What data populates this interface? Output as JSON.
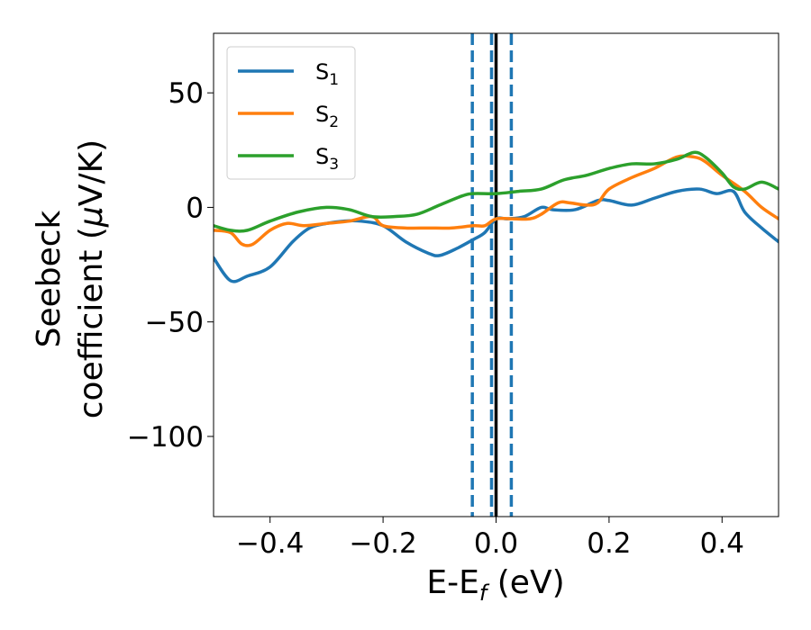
{
  "chart_data": {
    "type": "line",
    "title": "",
    "xlabel": {
      "main": "E-E",
      "sub": "f",
      "unit": " (eV)"
    },
    "ylabel": {
      "line1": "Seebeck",
      "line2_start": "coefficient  (",
      "mu": "μ",
      "line2_end": "V/K)"
    },
    "xlim": [
      -0.5,
      0.5
    ],
    "ylim": [
      -135,
      76
    ],
    "xticks": [
      -0.4,
      -0.2,
      0.0,
      0.2,
      0.4
    ],
    "xtick_labels": [
      "−0.4",
      "−0.2",
      "0.0",
      "0.2",
      "0.4"
    ],
    "yticks": [
      50,
      0,
      -50,
      -100
    ],
    "ytick_labels": [
      "50",
      "0",
      "−50",
      "−100"
    ],
    "grid": false,
    "legend": {
      "placement": "top-left"
    },
    "series": [
      {
        "name": "S1",
        "label_main": "S",
        "label_sub": "1",
        "color": "#1f77b4",
        "x": [
          -0.5,
          -0.47,
          -0.44,
          -0.4,
          -0.36,
          -0.33,
          -0.3,
          -0.27,
          -0.24,
          -0.2,
          -0.16,
          -0.12,
          -0.1,
          -0.07,
          -0.04,
          -0.02,
          0.0,
          0.02,
          0.05,
          0.08,
          0.1,
          0.14,
          0.18,
          0.2,
          0.24,
          0.28,
          0.32,
          0.36,
          0.39,
          0.42,
          0.44,
          0.47,
          0.5
        ],
        "y": [
          -22,
          -32,
          -30,
          -26,
          -15,
          -9,
          -7,
          -6,
          -6,
          -8,
          -15,
          -20,
          -21,
          -18,
          -14,
          -11,
          -5,
          -5,
          -4,
          0,
          -1,
          -1,
          3,
          3,
          1,
          4,
          7,
          8,
          6,
          7,
          -2,
          -9,
          -15
        ]
      },
      {
        "name": "S2",
        "label_main": "S",
        "label_sub": "2",
        "color": "#ff7f0e",
        "x": [
          -0.5,
          -0.47,
          -0.45,
          -0.43,
          -0.4,
          -0.37,
          -0.34,
          -0.3,
          -0.26,
          -0.22,
          -0.2,
          -0.16,
          -0.12,
          -0.08,
          -0.04,
          -0.02,
          0.0,
          0.03,
          0.06,
          0.08,
          0.11,
          0.13,
          0.16,
          0.18,
          0.2,
          0.24,
          0.28,
          0.32,
          0.35,
          0.37,
          0.4,
          0.44,
          0.47,
          0.5
        ],
        "y": [
          -10,
          -11,
          -16,
          -16,
          -10,
          -7,
          -8,
          -7,
          -6,
          -4,
          -8,
          -9,
          -9,
          -9,
          -8,
          -8,
          -5,
          -5,
          -5,
          -3,
          2,
          2,
          1,
          2,
          8,
          13,
          17,
          22,
          22,
          20,
          14,
          7,
          0,
          -5
        ]
      },
      {
        "name": "S3",
        "label_main": "S",
        "label_sub": "3",
        "color": "#2ca02c",
        "x": [
          -0.5,
          -0.47,
          -0.44,
          -0.4,
          -0.35,
          -0.3,
          -0.26,
          -0.22,
          -0.18,
          -0.14,
          -0.1,
          -0.06,
          -0.04,
          0.0,
          0.04,
          0.08,
          0.12,
          0.16,
          0.2,
          0.24,
          0.28,
          0.32,
          0.35,
          0.37,
          0.4,
          0.42,
          0.44,
          0.47,
          0.5
        ],
        "y": [
          -8,
          -10,
          -10,
          -6,
          -2,
          0,
          -1,
          -4,
          -4,
          -3,
          1,
          5,
          6,
          6,
          7,
          8,
          12,
          14,
          17,
          19,
          19,
          21,
          24,
          22,
          15,
          9,
          8,
          11,
          8
        ]
      }
    ],
    "vlines": [
      {
        "x": -0.042,
        "style": "dashed",
        "color": "#1f77b4"
      },
      {
        "x": -0.008,
        "style": "dashed",
        "color": "#1f77b4"
      },
      {
        "x": 0.027,
        "style": "dashed",
        "color": "#1f77b4"
      },
      {
        "x": 0.0,
        "style": "solid",
        "color": "#000000"
      }
    ]
  }
}
